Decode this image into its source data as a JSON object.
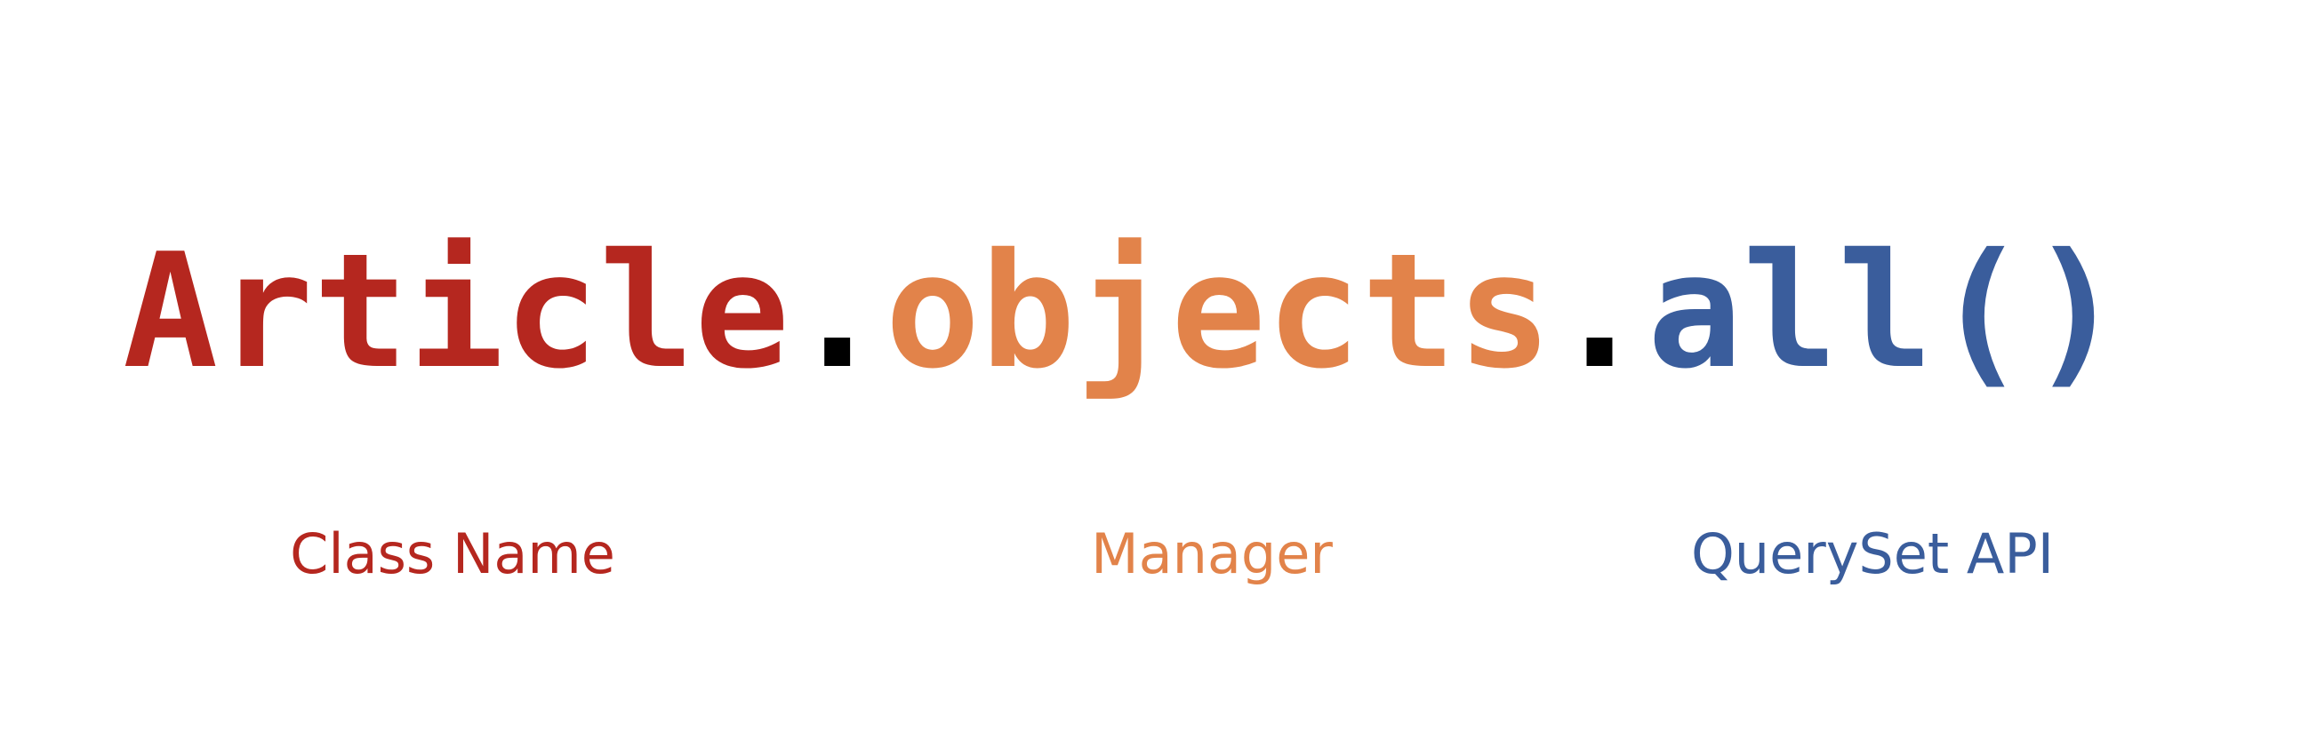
{
  "code": {
    "parts": [
      "Article",
      ".",
      "objects",
      ".",
      "all()"
    ]
  },
  "labels": [
    "Class Name",
    "Manager",
    "QuerySet API"
  ]
}
